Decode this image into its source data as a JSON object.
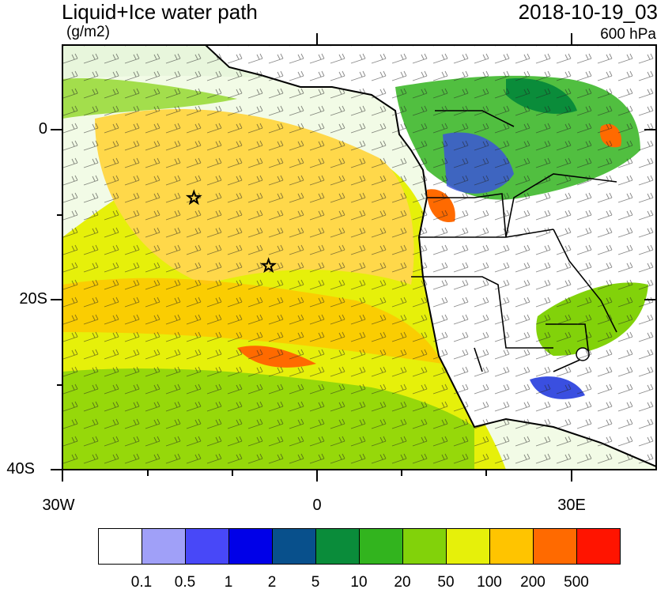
{
  "title": "Liquid+Ice water path",
  "units": "(g/m2)",
  "datetime": "2018-10-19_03",
  "level": "600 hPa",
  "lat_ticks": [
    "0",
    "20S",
    "40S"
  ],
  "lon_ticks": [
    "30W",
    "0",
    "30E"
  ],
  "markers": [
    {
      "name": "star-marker-1",
      "lon": -14.5,
      "lat": -8
    },
    {
      "name": "star-marker-2",
      "lon": -5.7,
      "lat": -16
    }
  ],
  "colorbar": {
    "colors": [
      "#ffffff",
      "#a0a0f8",
      "#4848f8",
      "#0000e8",
      "#08508c",
      "#0a8c3a",
      "#32b41e",
      "#82d20a",
      "#e6f00a",
      "#ffc400",
      "#ff6a00",
      "#ff1400"
    ],
    "labels": [
      "0.1",
      "0.5",
      "1",
      "2",
      "5",
      "10",
      "20",
      "50",
      "100",
      "200",
      "500"
    ]
  }
}
